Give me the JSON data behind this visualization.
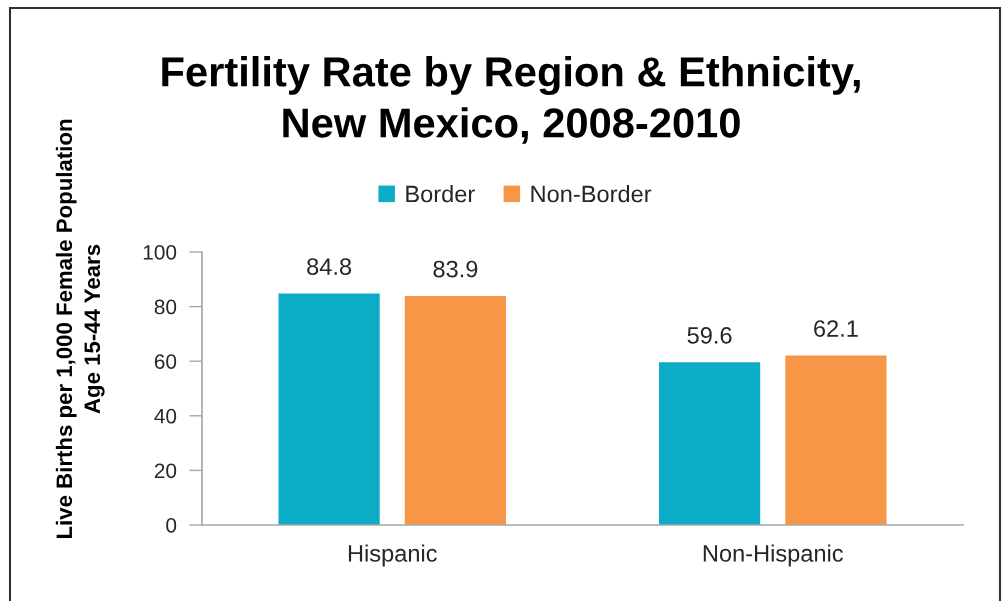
{
  "chart_data": {
    "type": "bar",
    "title": "Fertility Rate by Region & Ethnicity,\nNew Mexico, 2008-2010",
    "ylabel": "Live Births per 1,000 Female Population\nAge 15-44 Years",
    "categories": [
      "Hispanic",
      "Non-Hispanic"
    ],
    "series": [
      {
        "name": "Border",
        "color": "#0cacc6",
        "values": [
          84.8,
          59.6
        ]
      },
      {
        "name": "Non-Border",
        "color": "#f79646",
        "values": [
          83.9,
          62.1
        ]
      }
    ],
    "ylim": [
      0,
      100
    ],
    "yticks": [
      0,
      20,
      40,
      60,
      80,
      100
    ],
    "legend": "top",
    "data_labels": true
  }
}
